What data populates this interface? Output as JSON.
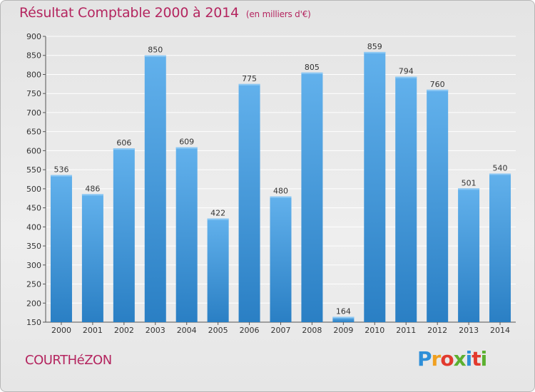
{
  "title": "Résultat Comptable 2000 à 2014",
  "unit": "(en milliers d'€)",
  "town": "COURTHéZON",
  "logo": {
    "text": "Proxiti",
    "letters": [
      "P",
      "r",
      "o",
      "x",
      "i",
      "t",
      "i"
    ],
    "colors": [
      "#2e8fd8",
      "#f0a020",
      "#e23a2e",
      "#5cb030",
      "#2e8fd8",
      "#e23a2e",
      "#5cb030"
    ]
  },
  "colors": {
    "title": "#b4255f",
    "bar_top": "#62b1ec",
    "bar_bottom": "#2a7fc4",
    "grid": "#ffffff"
  },
  "chart_data": {
    "type": "bar",
    "categories": [
      "2000",
      "2001",
      "2002",
      "2003",
      "2004",
      "2005",
      "2006",
      "2007",
      "2008",
      "2009",
      "2010",
      "2011",
      "2012",
      "2013",
      "2014"
    ],
    "values": [
      536,
      486,
      606,
      850,
      609,
      422,
      775,
      480,
      805,
      164,
      859,
      794,
      760,
      501,
      540
    ],
    "yticks": [
      150,
      200,
      250,
      300,
      350,
      400,
      450,
      500,
      550,
      600,
      650,
      700,
      750,
      800,
      850,
      900
    ],
    "ylim": [
      150,
      900
    ],
    "grid": true,
    "legend": "none"
  }
}
